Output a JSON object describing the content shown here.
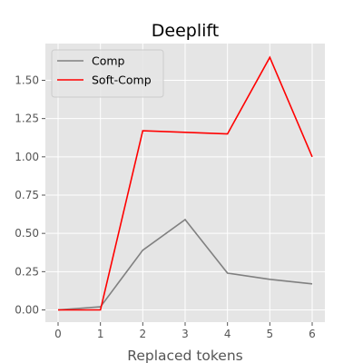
{
  "chart_data": {
    "type": "line",
    "title": "Deeplift",
    "xlabel": "Replaced tokens",
    "ylabel": "",
    "x": [
      0,
      1,
      2,
      3,
      4,
      5,
      6
    ],
    "xlim": [
      -0.3,
      6.3
    ],
    "ylim": [
      -0.08,
      1.74
    ],
    "xticks": [
      0,
      1,
      2,
      3,
      4,
      5,
      6
    ],
    "xtick_labels": [
      "0",
      "1",
      "2",
      "3",
      "4",
      "5",
      "6"
    ],
    "yticks": [
      0,
      0.25,
      0.5,
      0.75,
      1.0,
      1.25,
      1.5
    ],
    "ytick_labels": [
      "0.00",
      "0.25",
      "0.50",
      "0.75",
      "1.00",
      "1.25",
      "1.50"
    ],
    "grid": true,
    "legend_position": "top-left",
    "series": [
      {
        "name": "Comp",
        "color": "#808080",
        "values": [
          0.0,
          0.02,
          0.39,
          0.59,
          0.24,
          0.2,
          0.17
        ]
      },
      {
        "name": "Soft-Comp",
        "color": "#ff0000",
        "values": [
          0.0,
          0.0,
          1.17,
          1.16,
          1.15,
          1.65,
          1.0
        ]
      }
    ]
  }
}
